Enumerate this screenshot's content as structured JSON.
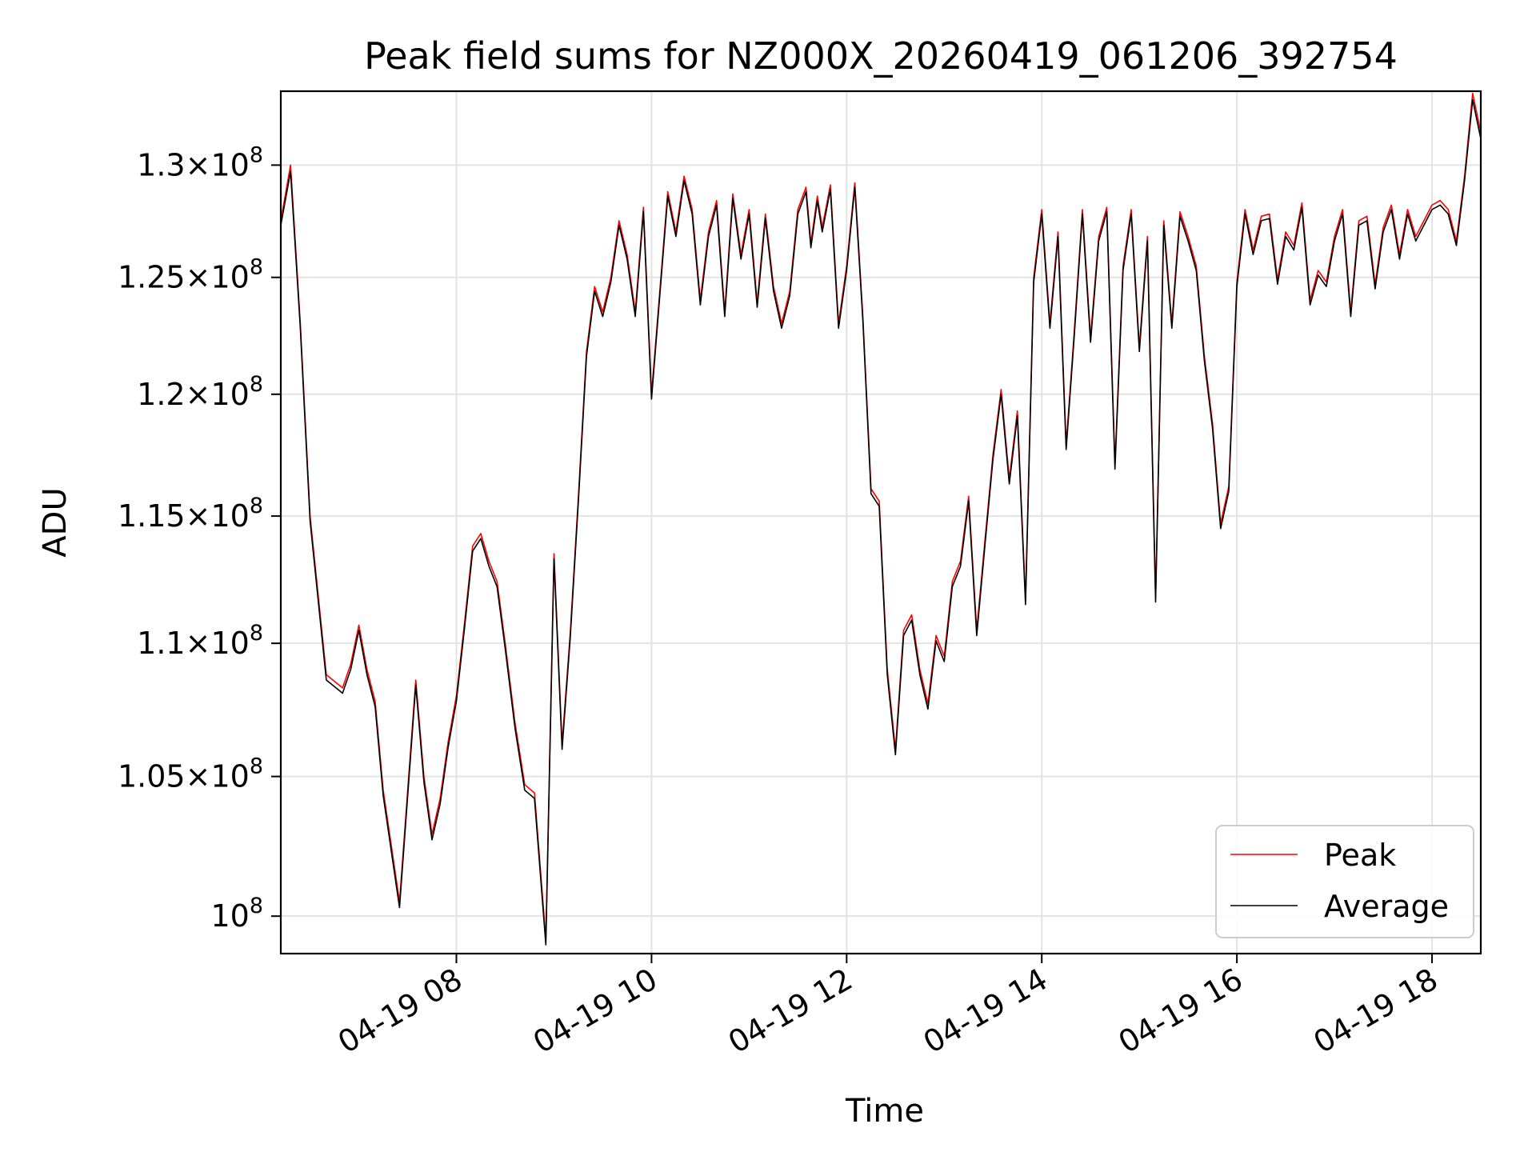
{
  "chart_data": {
    "type": "line",
    "title": "Peak field sums for NZ000X_20260419_061206_392754",
    "xlabel": "Time",
    "ylabel": "ADU",
    "y_scale": "log",
    "grid": true,
    "legend_position": "lower right",
    "xlim": [
      "2026-04-19 06:12",
      "2026-04-19 18:30"
    ],
    "ylim": [
      98700000,
      133400000
    ],
    "x_ticks": [
      {
        "value": "2026-04-19 08:00",
        "label": "04-19 08"
      },
      {
        "value": "2026-04-19 10:00",
        "label": "04-19 10"
      },
      {
        "value": "2026-04-19 12:00",
        "label": "04-19 12"
      },
      {
        "value": "2026-04-19 14:00",
        "label": "04-19 14"
      },
      {
        "value": "2026-04-19 16:00",
        "label": "04-19 16"
      },
      {
        "value": "2026-04-19 18:00",
        "label": "04-19 18"
      }
    ],
    "y_ticks": [
      {
        "value": 100000000,
        "mantissa": "",
        "exponent": "8"
      },
      {
        "value": 105000000,
        "mantissa": "1.05",
        "exponent": "8"
      },
      {
        "value": 110000000,
        "mantissa": "1.1",
        "exponent": "8"
      },
      {
        "value": 115000000,
        "mantissa": "1.15",
        "exponent": "8"
      },
      {
        "value": 120000000,
        "mantissa": "1.2",
        "exponent": "8"
      },
      {
        "value": 125000000,
        "mantissa": "1.25",
        "exponent": "8"
      },
      {
        "value": 130000000,
        "mantissa": "1.3",
        "exponent": "8"
      }
    ],
    "y_tick_base": "10",
    "y_tick_times": "×",
    "series": [
      {
        "name": "Peak",
        "color": "#ff0000",
        "x": [
          "2026-04-19 06:12",
          "2026-04-19 06:18",
          "2026-04-19 06:24",
          "2026-04-19 06:30",
          "2026-04-19 06:40",
          "2026-04-19 06:50",
          "2026-04-19 06:55",
          "2026-04-19 07:00",
          "2026-04-19 07:05",
          "2026-04-19 07:10",
          "2026-04-19 07:15",
          "2026-04-19 07:25",
          "2026-04-19 07:35",
          "2026-04-19 07:40",
          "2026-04-19 07:45",
          "2026-04-19 07:50",
          "2026-04-19 07:55",
          "2026-04-19 08:00",
          "2026-04-19 08:05",
          "2026-04-19 08:10",
          "2026-04-19 08:15",
          "2026-04-19 08:20",
          "2026-04-19 08:25",
          "2026-04-19 08:30",
          "2026-04-19 08:36",
          "2026-04-19 08:42",
          "2026-04-19 08:48",
          "2026-04-19 08:55",
          "2026-04-19 09:00",
          "2026-04-19 09:05",
          "2026-04-19 09:10",
          "2026-04-19 09:15",
          "2026-04-19 09:20",
          "2026-04-19 09:25",
          "2026-04-19 09:30",
          "2026-04-19 09:35",
          "2026-04-19 09:40",
          "2026-04-19 09:45",
          "2026-04-19 09:50",
          "2026-04-19 09:55",
          "2026-04-19 10:00",
          "2026-04-19 10:10",
          "2026-04-19 10:15",
          "2026-04-19 10:20",
          "2026-04-19 10:25",
          "2026-04-19 10:30",
          "2026-04-19 10:35",
          "2026-04-19 10:40",
          "2026-04-19 10:45",
          "2026-04-19 10:50",
          "2026-04-19 10:55",
          "2026-04-19 11:00",
          "2026-04-19 11:05",
          "2026-04-19 11:10",
          "2026-04-19 11:15",
          "2026-04-19 11:20",
          "2026-04-19 11:25",
          "2026-04-19 11:30",
          "2026-04-19 11:35",
          "2026-04-19 11:38",
          "2026-04-19 11:42",
          "2026-04-19 11:45",
          "2026-04-19 11:50",
          "2026-04-19 11:55",
          "2026-04-19 12:00",
          "2026-04-19 12:05",
          "2026-04-19 12:10",
          "2026-04-19 12:15",
          "2026-04-19 12:20",
          "2026-04-19 12:25",
          "2026-04-19 12:30",
          "2026-04-19 12:35",
          "2026-04-19 12:40",
          "2026-04-19 12:45",
          "2026-04-19 12:50",
          "2026-04-19 12:55",
          "2026-04-19 13:00",
          "2026-04-19 13:05",
          "2026-04-19 13:10",
          "2026-04-19 13:15",
          "2026-04-19 13:20",
          "2026-04-19 13:25",
          "2026-04-19 13:30",
          "2026-04-19 13:35",
          "2026-04-19 13:40",
          "2026-04-19 13:45",
          "2026-04-19 13:50",
          "2026-04-19 13:55",
          "2026-04-19 14:00",
          "2026-04-19 14:05",
          "2026-04-19 14:10",
          "2026-04-19 14:15",
          "2026-04-19 14:20",
          "2026-04-19 14:25",
          "2026-04-19 14:30",
          "2026-04-19 14:35",
          "2026-04-19 14:40",
          "2026-04-19 14:45",
          "2026-04-19 14:50",
          "2026-04-19 14:55",
          "2026-04-19 15:00",
          "2026-04-19 15:05",
          "2026-04-19 15:10",
          "2026-04-19 15:15",
          "2026-04-19 15:20",
          "2026-04-19 15:25",
          "2026-04-19 15:30",
          "2026-04-19 15:35",
          "2026-04-19 15:40",
          "2026-04-19 15:45",
          "2026-04-19 15:50",
          "2026-04-19 15:55",
          "2026-04-19 16:00",
          "2026-04-19 16:05",
          "2026-04-19 16:10",
          "2026-04-19 16:15",
          "2026-04-19 16:20",
          "2026-04-19 16:25",
          "2026-04-19 16:30",
          "2026-04-19 16:35",
          "2026-04-19 16:40",
          "2026-04-19 16:45",
          "2026-04-19 16:50",
          "2026-04-19 16:55",
          "2026-04-19 17:00",
          "2026-04-19 17:05",
          "2026-04-19 17:10",
          "2026-04-19 17:15",
          "2026-04-19 17:20",
          "2026-04-19 17:25",
          "2026-04-19 17:30",
          "2026-04-19 17:35",
          "2026-04-19 17:40",
          "2026-04-19 17:45",
          "2026-04-19 17:50",
          "2026-04-19 17:55",
          "2026-04-19 18:00",
          "2026-04-19 18:05",
          "2026-04-19 18:10",
          "2026-04-19 18:15",
          "2026-04-19 18:20",
          "2026-04-19 18:25",
          "2026-04-19 18:30"
        ],
        "values": [
          127500000,
          130000000,
          123000000,
          115000000,
          108800000,
          108300000,
          109200000,
          110700000,
          109000000,
          107800000,
          104500000,
          100500000,
          108600000,
          105000000,
          102900000,
          104200000,
          106300000,
          108000000,
          110800000,
          113800000,
          114300000,
          113200000,
          112400000,
          110000000,
          107000000,
          104700000,
          104400000,
          99200000,
          113500000,
          106200000,
          110400000,
          115800000,
          121800000,
          124600000,
          123500000,
          125000000,
          127500000,
          126000000,
          123500000,
          128100000,
          120000000,
          128800000,
          127000000,
          129500000,
          128000000,
          124000000,
          127000000,
          128400000,
          123500000,
          128700000,
          126000000,
          128000000,
          123900000,
          127800000,
          124600000,
          123000000,
          124400000,
          128000000,
          129000000,
          126500000,
          128600000,
          127200000,
          129100000,
          123000000,
          125500000,
          129200000,
          123300000,
          116100000,
          115600000,
          109000000,
          106000000,
          110500000,
          111100000,
          109000000,
          107700000,
          110300000,
          109500000,
          112400000,
          113200000,
          115800000,
          110500000,
          114000000,
          117500000,
          120200000,
          116500000,
          119300000,
          111700000,
          125000000,
          128000000,
          123000000,
          127000000,
          117900000,
          122700000,
          128000000,
          122400000,
          126800000,
          128100000,
          117100000,
          125500000,
          128000000,
          122000000,
          126800000,
          111800000,
          127500000,
          123000000,
          127900000,
          126800000,
          125500000,
          121600000,
          118800000,
          114700000,
          116200000,
          124800000,
          128000000,
          126200000,
          127700000,
          127800000,
          124900000,
          127000000,
          126400000,
          128300000,
          124000000,
          125300000,
          124800000,
          126800000,
          128000000,
          123500000,
          127500000,
          127700000,
          124700000,
          127200000,
          128200000,
          126000000,
          128000000,
          126800000,
          127500000,
          128200000,
          128400000,
          128000000,
          126600000,
          129500000,
          133300000,
          131500000
        ],
        "values_note": ""
      },
      {
        "name": "Average",
        "color": "#000000",
        "x": [
          "2026-04-19 06:12",
          "2026-04-19 06:18",
          "2026-04-19 06:24",
          "2026-04-19 06:30",
          "2026-04-19 06:40",
          "2026-04-19 06:50",
          "2026-04-19 06:55",
          "2026-04-19 07:00",
          "2026-04-19 07:05",
          "2026-04-19 07:10",
          "2026-04-19 07:15",
          "2026-04-19 07:25",
          "2026-04-19 07:35",
          "2026-04-19 07:40",
          "2026-04-19 07:45",
          "2026-04-19 07:50",
          "2026-04-19 07:55",
          "2026-04-19 08:00",
          "2026-04-19 08:05",
          "2026-04-19 08:10",
          "2026-04-19 08:15",
          "2026-04-19 08:20",
          "2026-04-19 08:25",
          "2026-04-19 08:30",
          "2026-04-19 08:36",
          "2026-04-19 08:42",
          "2026-04-19 08:48",
          "2026-04-19 08:55",
          "2026-04-19 09:00",
          "2026-04-19 09:05",
          "2026-04-19 09:10",
          "2026-04-19 09:15",
          "2026-04-19 09:20",
          "2026-04-19 09:25",
          "2026-04-19 09:30",
          "2026-04-19 09:35",
          "2026-04-19 09:40",
          "2026-04-19 09:45",
          "2026-04-19 09:50",
          "2026-04-19 09:55",
          "2026-04-19 10:00",
          "2026-04-19 10:10",
          "2026-04-19 10:15",
          "2026-04-19 10:20",
          "2026-04-19 10:25",
          "2026-04-19 10:30",
          "2026-04-19 10:35",
          "2026-04-19 10:40",
          "2026-04-19 10:45",
          "2026-04-19 10:50",
          "2026-04-19 10:55",
          "2026-04-19 11:00",
          "2026-04-19 11:05",
          "2026-04-19 11:10",
          "2026-04-19 11:15",
          "2026-04-19 11:20",
          "2026-04-19 11:25",
          "2026-04-19 11:30",
          "2026-04-19 11:35",
          "2026-04-19 11:38",
          "2026-04-19 11:42",
          "2026-04-19 11:45",
          "2026-04-19 11:50",
          "2026-04-19 11:55",
          "2026-04-19 12:00",
          "2026-04-19 12:05",
          "2026-04-19 12:10",
          "2026-04-19 12:15",
          "2026-04-19 12:20",
          "2026-04-19 12:25",
          "2026-04-19 12:30",
          "2026-04-19 12:35",
          "2026-04-19 12:40",
          "2026-04-19 12:45",
          "2026-04-19 12:50",
          "2026-04-19 12:55",
          "2026-04-19 13:00",
          "2026-04-19 13:05",
          "2026-04-19 13:10",
          "2026-04-19 13:15",
          "2026-04-19 13:20",
          "2026-04-19 13:25",
          "2026-04-19 13:30",
          "2026-04-19 13:35",
          "2026-04-19 13:40",
          "2026-04-19 13:45",
          "2026-04-19 13:50",
          "2026-04-19 13:55",
          "2026-04-19 14:00",
          "2026-04-19 14:05",
          "2026-04-19 14:10",
          "2026-04-19 14:15",
          "2026-04-19 14:20",
          "2026-04-19 14:25",
          "2026-04-19 14:30",
          "2026-04-19 14:35",
          "2026-04-19 14:40",
          "2026-04-19 14:45",
          "2026-04-19 14:50",
          "2026-04-19 14:55",
          "2026-04-19 15:00",
          "2026-04-19 15:05",
          "2026-04-19 15:10",
          "2026-04-19 15:15",
          "2026-04-19 15:20",
          "2026-04-19 15:25",
          "2026-04-19 15:30",
          "2026-04-19 15:35",
          "2026-04-19 15:40",
          "2026-04-19 15:45",
          "2026-04-19 15:50",
          "2026-04-19 15:55",
          "2026-04-19 16:00",
          "2026-04-19 16:05",
          "2026-04-19 16:10",
          "2026-04-19 16:15",
          "2026-04-19 16:20",
          "2026-04-19 16:25",
          "2026-04-19 16:30",
          "2026-04-19 16:35",
          "2026-04-19 16:40",
          "2026-04-19 16:45",
          "2026-04-19 16:50",
          "2026-04-19 16:55",
          "2026-04-19 17:00",
          "2026-04-19 17:05",
          "2026-04-19 17:10",
          "2026-04-19 17:15",
          "2026-04-19 17:20",
          "2026-04-19 17:25",
          "2026-04-19 17:30",
          "2026-04-19 17:35",
          "2026-04-19 17:40",
          "2026-04-19 17:45",
          "2026-04-19 17:50",
          "2026-04-19 17:55",
          "2026-04-19 18:00",
          "2026-04-19 18:05",
          "2026-04-19 18:10",
          "2026-04-19 18:15",
          "2026-04-19 18:20",
          "2026-04-19 18:25",
          "2026-04-19 18:30"
        ],
        "values": [
          127300000,
          129700000,
          122800000,
          114800000,
          108600000,
          108100000,
          109000000,
          110500000,
          108800000,
          107600000,
          104300000,
          100300000,
          108400000,
          104800000,
          102700000,
          104000000,
          106100000,
          107800000,
          110600000,
          113600000,
          114100000,
          113000000,
          112200000,
          109800000,
          106800000,
          104500000,
          104200000,
          99000000,
          113300000,
          106000000,
          110200000,
          115600000,
          121600000,
          124400000,
          123300000,
          124800000,
          127300000,
          125800000,
          123300000,
          127900000,
          119800000,
          128600000,
          126800000,
          129300000,
          127800000,
          123800000,
          126800000,
          128200000,
          123300000,
          128500000,
          125800000,
          127800000,
          123700000,
          127600000,
          124400000,
          122800000,
          124200000,
          127800000,
          128800000,
          126300000,
          128400000,
          127000000,
          128900000,
          122800000,
          125300000,
          129000000,
          123100000,
          115900000,
          115400000,
          108800000,
          105800000,
          110300000,
          110900000,
          108800000,
          107500000,
          110100000,
          109300000,
          112200000,
          113000000,
          115600000,
          110300000,
          113800000,
          117300000,
          120000000,
          116300000,
          119100000,
          111500000,
          124800000,
          127800000,
          122800000,
          126800000,
          117700000,
          122500000,
          127800000,
          122200000,
          126600000,
          127900000,
          116900000,
          125300000,
          127800000,
          121800000,
          126600000,
          111600000,
          127300000,
          122800000,
          127700000,
          126600000,
          125300000,
          121400000,
          118600000,
          114500000,
          116000000,
          124600000,
          127800000,
          126000000,
          127500000,
          127600000,
          124700000,
          126800000,
          126200000,
          128100000,
          123800000,
          125100000,
          124600000,
          126600000,
          127800000,
          123300000,
          127300000,
          127500000,
          124500000,
          127000000,
          128000000,
          125800000,
          127800000,
          126600000,
          127300000,
          128000000,
          128200000,
          127800000,
          126400000,
          129300000,
          133000000,
          131200000
        ],
        "values_note": ""
      }
    ]
  }
}
